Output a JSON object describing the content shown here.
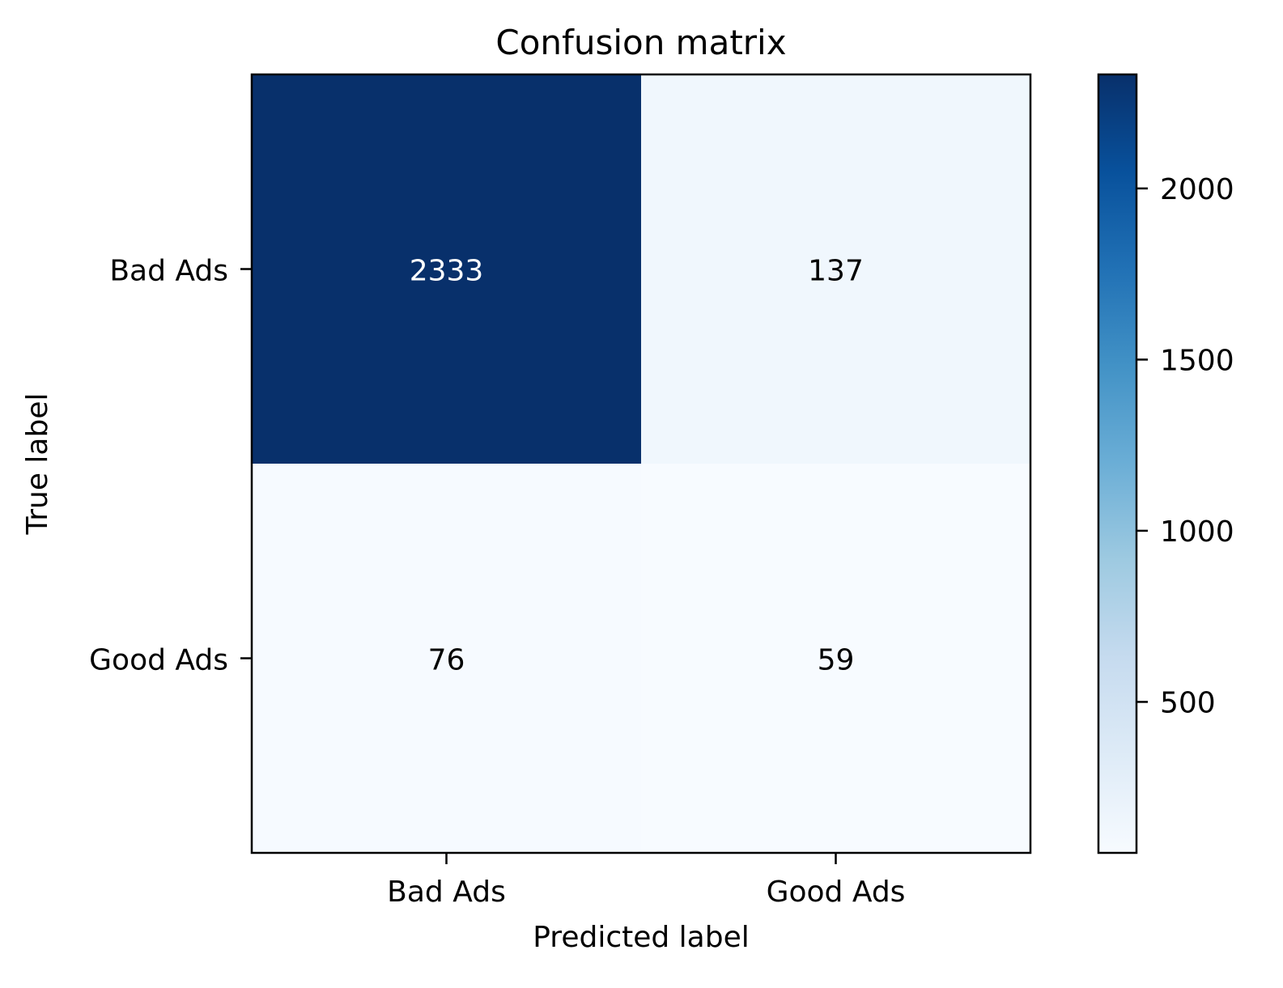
{
  "chart_data": {
    "type": "heatmap",
    "title": "Confusion matrix",
    "xlabel": "Predicted label",
    "ylabel": "True label",
    "x_categories": [
      "Bad Ads",
      "Good Ads"
    ],
    "y_categories": [
      "Bad Ads",
      "Good Ads"
    ],
    "matrix": [
      [
        2333,
        137
      ],
      [
        76,
        59
      ]
    ],
    "colormap": "Blues",
    "colorbar": {
      "min": 59,
      "max": 2333,
      "ticks": [
        500,
        1000,
        1500,
        2000
      ]
    },
    "grid": false
  }
}
